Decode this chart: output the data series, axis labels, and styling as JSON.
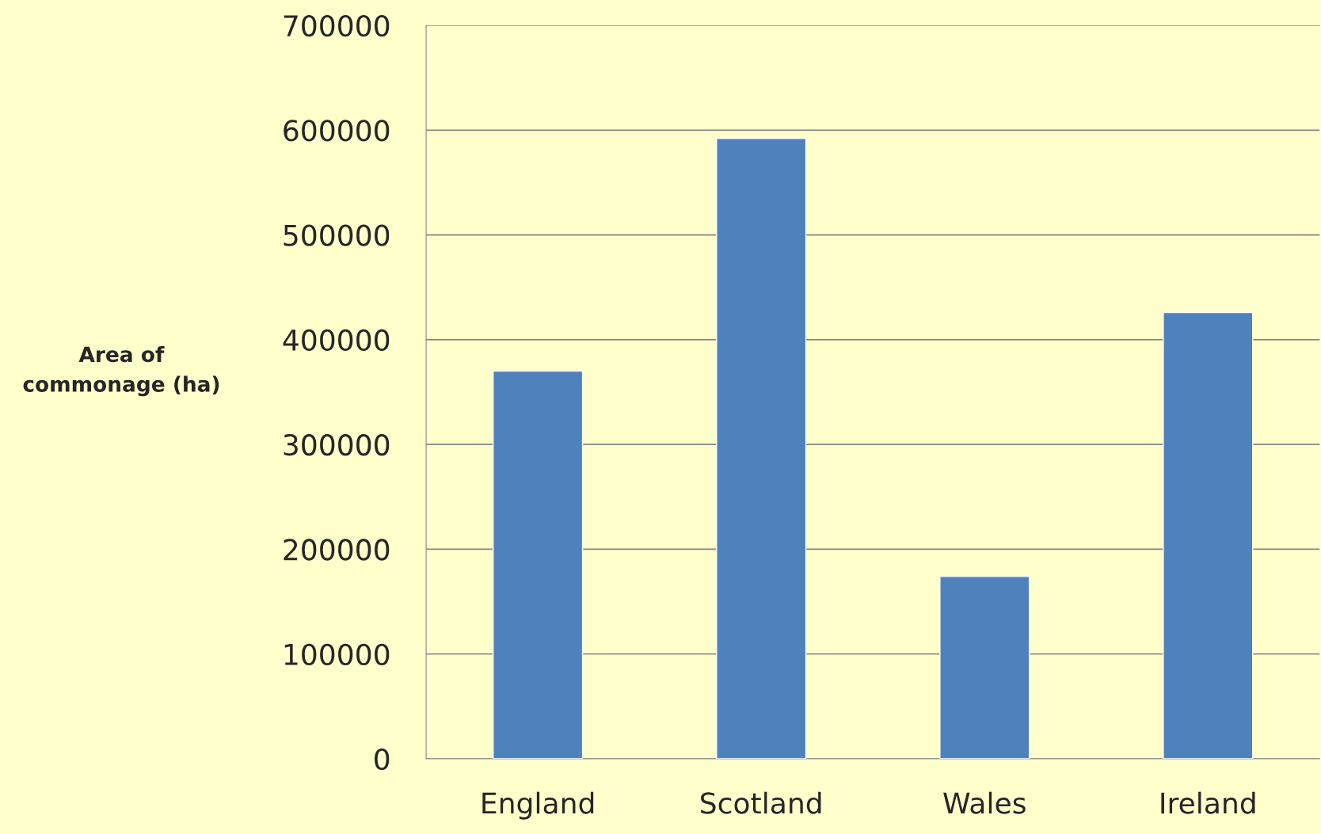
{
  "chart_data": {
    "type": "bar",
    "ylabel": "Area of\ncommonage (ha)",
    "categories": [
      "England",
      "Scotland",
      "Wales",
      "Ireland"
    ],
    "values": [
      370000,
      592000,
      174000,
      426000
    ],
    "color": "#4f81bd",
    "ylim": [
      0,
      700000
    ],
    "yticks": [
      0,
      100000,
      200000,
      300000,
      400000,
      500000,
      600000,
      700000
    ],
    "grid": "y"
  }
}
